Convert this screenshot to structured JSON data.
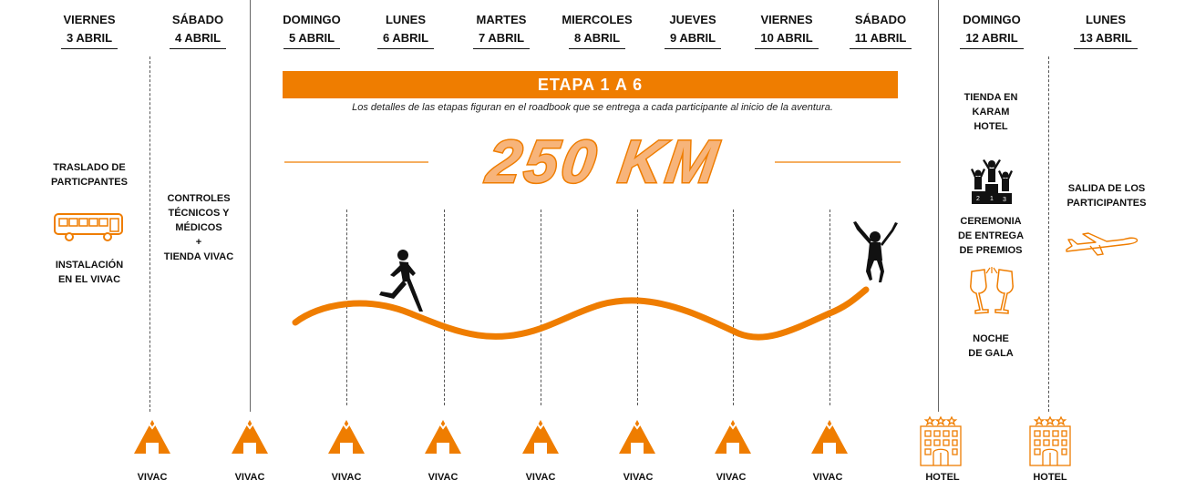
{
  "colors": {
    "accent": "#ef7d00",
    "light_accent": "#f7b47a",
    "text": "#111111"
  },
  "days": [
    {
      "dow": "VIERNES",
      "date": "3 ABRIL"
    },
    {
      "dow": "SÁBADO",
      "date": "4 ABRIL"
    },
    {
      "dow": "DOMINGO",
      "date": "5 ABRIL"
    },
    {
      "dow": "LUNES",
      "date": "6 ABRIL"
    },
    {
      "dow": "MARTES",
      "date": "7 ABRIL"
    },
    {
      "dow": "MIERCOLES",
      "date": "8 ABRIL"
    },
    {
      "dow": "JUEVES",
      "date": "9 ABRIL"
    },
    {
      "dow": "VIERNES",
      "date": "10 ABRIL"
    },
    {
      "dow": "SÁBADO",
      "date": "11 ABRIL"
    },
    {
      "dow": "DOMINGO",
      "date": "12 ABRIL"
    },
    {
      "dow": "LUNES",
      "date": "13 ABRIL"
    }
  ],
  "stage": {
    "banner": "ETAPA 1 A 6",
    "note": "Los detalles de las etapas figuran en el roadbook que se entrega a cada participante al inicio de la aventura.",
    "distance": "250 KM"
  },
  "day1": {
    "transfer": "TRASLADO DE\nPARTICPANTES",
    "camp": "INSTALACIÓN\nEN EL VIVAC"
  },
  "day2": {
    "controls": "CONTROLES\nTÉCNICOS Y\nMÉDICOS\n+\nTIENDA VIVAC"
  },
  "day10": {
    "shop": "TIENDA EN\nKARAM\nHOTEL",
    "ceremony": "CEREMONIA\nDE ENTREGA\nDE PREMIOS",
    "gala": "NOCHE\nDE GALA"
  },
  "day11": {
    "departure": "SALIDA DE LOS\nPARTICIPANTES"
  },
  "lodging": [
    "VIVAC",
    "VIVAC",
    "VIVAC",
    "VIVAC",
    "VIVAC",
    "VIVAC",
    "VIVAC",
    "VIVAC",
    "HOTEL",
    "HOTEL"
  ],
  "icons": {
    "bus": "bus-icon",
    "tent": "tent-icon",
    "hotel": "hotel-icon",
    "podium": "podium-icon",
    "champagne": "champagne-icon",
    "plane": "plane-icon",
    "runner": "runner-icon",
    "finisher": "finisher-icon"
  }
}
